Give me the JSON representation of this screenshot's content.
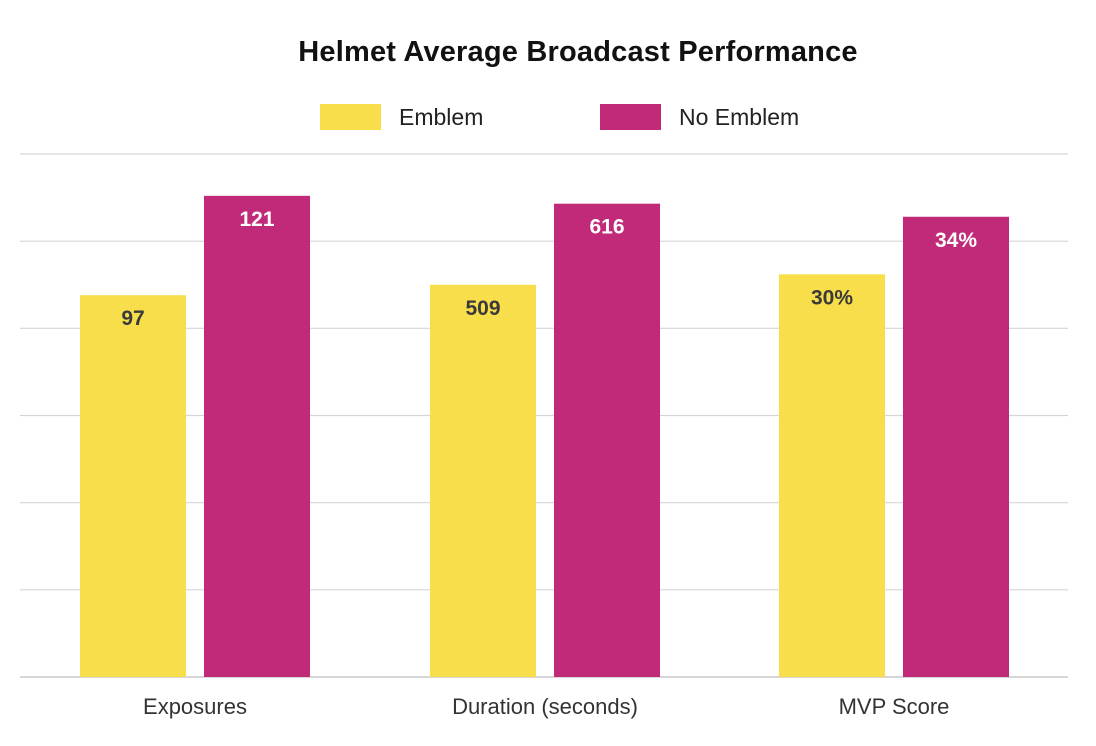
{
  "chart_data": {
    "type": "bar",
    "title": "Helmet Average Broadcast Performance",
    "categories": [
      "Exposures",
      "Duration (seconds)",
      "MVP Score"
    ],
    "series": [
      {
        "name": "Emblem",
        "color": "#F8DE4A",
        "label_color": "#3a3a3a",
        "values": [
          97,
          509,
          30
        ],
        "labels": [
          "97",
          "509",
          "30%"
        ],
        "relative_height": [
          0.73,
          0.75,
          0.77
        ]
      },
      {
        "name": "No Emblem",
        "color": "#C02A78",
        "label_color": "#ffffff",
        "values": [
          121,
          616,
          34
        ],
        "labels": [
          "121",
          "616",
          "34%"
        ],
        "relative_height": [
          0.92,
          0.905,
          0.88
        ]
      }
    ],
    "xlabel": "",
    "ylabel": "",
    "grid": true,
    "legend_position": "top-center",
    "gridline_color": "#d6d6d6"
  }
}
